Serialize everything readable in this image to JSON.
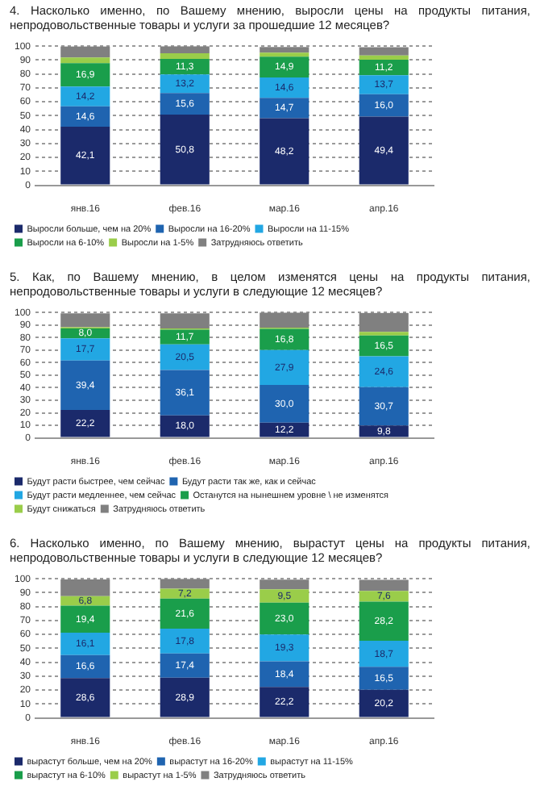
{
  "chart_data": [
    {
      "type": "bar",
      "title": "4. Насколько именно, по Вашему мнению, выросли цены на продукты питания, непродовольственные товары и услуги за прошедшие 12 месяцев?",
      "categories": [
        "янв.16",
        "фев.16",
        "мар.16",
        "апр.16"
      ],
      "stacked": true,
      "ylim": [
        0,
        100
      ],
      "yticks": [
        0,
        10,
        20,
        30,
        40,
        50,
        60,
        70,
        80,
        90,
        100
      ],
      "grid": "y",
      "legend": "bottom",
      "series": [
        {
          "name": "Выросли больше, чем на 20%",
          "color": "#1b2a6b",
          "values": [
            42.1,
            50.8,
            48.2,
            49.4
          ],
          "value_labels": [
            "42,1",
            "50,8",
            "48,2",
            "49,4"
          ]
        },
        {
          "name": "Выросли на 16-20%",
          "color": "#1f64b0",
          "values": [
            14.6,
            15.6,
            14.7,
            16.0
          ],
          "value_labels": [
            "14,6",
            "15,6",
            "14,7",
            "16,0"
          ]
        },
        {
          "name": "Выросли на 11-15%",
          "color": "#22a7e3",
          "values": [
            14.2,
            13.2,
            14.6,
            13.7
          ],
          "value_labels": [
            "14,2",
            "13,2",
            "14,6",
            "13,7"
          ]
        },
        {
          "name": "Выросли на 6-10%",
          "color": "#1a9e4b",
          "values": [
            16.9,
            11.3,
            14.9,
            11.2
          ],
          "value_labels": [
            "16,9",
            "11,3",
            "14,9",
            "11,2"
          ]
        },
        {
          "name": "Выросли на 1-5%",
          "color": "#9acd4a",
          "values": [
            4,
            4,
            3,
            3
          ]
        },
        {
          "name": "Затрудняюсь ответить",
          "color": "#808080",
          "values": [
            8,
            5,
            4,
            6
          ]
        }
      ]
    },
    {
      "type": "bar",
      "title": "5. Как, по Вашему мнению, в целом изменятся цены на продукты питания, непродовольственные товары и услуги в следующие 12 месяцев?",
      "categories": [
        "янв.16",
        "фев.16",
        "мар.16",
        "апр.16"
      ],
      "stacked": true,
      "ylim": [
        0,
        100
      ],
      "yticks": [
        0,
        10,
        20,
        30,
        40,
        50,
        60,
        70,
        80,
        90,
        100
      ],
      "grid": "y",
      "legend": "bottom",
      "series": [
        {
          "name": "Будут расти быстрее, чем сейчас",
          "color": "#1b2a6b",
          "values": [
            22.2,
            18.0,
            12.2,
            9.8
          ],
          "value_labels": [
            "22,2",
            "18,0",
            "12,2",
            "9,8"
          ]
        },
        {
          "name": "Будут расти так же, как и сейчас",
          "color": "#1f64b0",
          "values": [
            39.4,
            36.1,
            30.0,
            30.7
          ],
          "value_labels": [
            "39,4",
            "36,1",
            "30,0",
            "30,7"
          ]
        },
        {
          "name": "Будут расти медленнее, чем сейчас",
          "color": "#22a7e3",
          "values": [
            17.7,
            20.5,
            27.9,
            24.6
          ],
          "value_labels": [
            "17,7",
            "20,5",
            "27,9",
            "24,6"
          ]
        },
        {
          "name": "Останутся на нынешнем уровне \\ не изменятся",
          "color": "#1a9e4b",
          "values": [
            8.0,
            11.7,
            16.8,
            16.5
          ],
          "value_labels": [
            "8,0",
            "11,7",
            "16,8",
            "16,5"
          ]
        },
        {
          "name": "Будут снижаться",
          "color": "#9acd4a",
          "values": [
            1,
            1,
            1,
            3
          ]
        },
        {
          "name": "Затрудняюсь ответить",
          "color": "#808080",
          "values": [
            11,
            12,
            12,
            15
          ]
        }
      ]
    },
    {
      "type": "bar",
      "title": "6. Насколько именно, по Вашему мнению, вырастут цены на продукты питания, непродовольственные товары и услуги в следующие 12 месяцев?",
      "categories": [
        "янв.16",
        "фев.16",
        "мар.16",
        "апр.16"
      ],
      "stacked": true,
      "ylim": [
        0,
        100
      ],
      "yticks": [
        0,
        10,
        20,
        30,
        40,
        50,
        60,
        70,
        80,
        90,
        100
      ],
      "grid": "y",
      "legend": "bottom",
      "series": [
        {
          "name": "вырастут больше, чем на 20%",
          "color": "#1b2a6b",
          "values": [
            28.6,
            28.9,
            22.2,
            20.2
          ],
          "value_labels": [
            "28,6",
            "28,9",
            "22,2",
            "20,2"
          ]
        },
        {
          "name": "вырастут на 16-20%",
          "color": "#1f64b0",
          "values": [
            16.6,
            17.4,
            18.4,
            16.5
          ],
          "value_labels": [
            "16,6",
            "17,4",
            "18,4",
            "16,5"
          ]
        },
        {
          "name": "вырастут на 11-15%",
          "color": "#22a7e3",
          "values": [
            16.1,
            17.8,
            19.3,
            18.7
          ],
          "value_labels": [
            "16,1",
            "17,8",
            "19,3",
            "18,7"
          ]
        },
        {
          "name": "вырастут на 6-10%",
          "color": "#1a9e4b",
          "values": [
            19.4,
            21.6,
            23.0,
            28.2
          ],
          "value_labels": [
            "19,4",
            "21,6",
            "23,0",
            "28,2"
          ]
        },
        {
          "name": "вырастут на 1-5%",
          "color": "#9acd4a",
          "values": [
            6.8,
            7.2,
            9.5,
            7.6
          ],
          "value_labels": [
            "6,8",
            "7,2",
            "9,5",
            "7,6"
          ]
        },
        {
          "name": "Затрудняюсь ответить",
          "color": "#808080",
          "values": [
            12,
            7,
            7,
            8
          ]
        }
      ]
    }
  ]
}
